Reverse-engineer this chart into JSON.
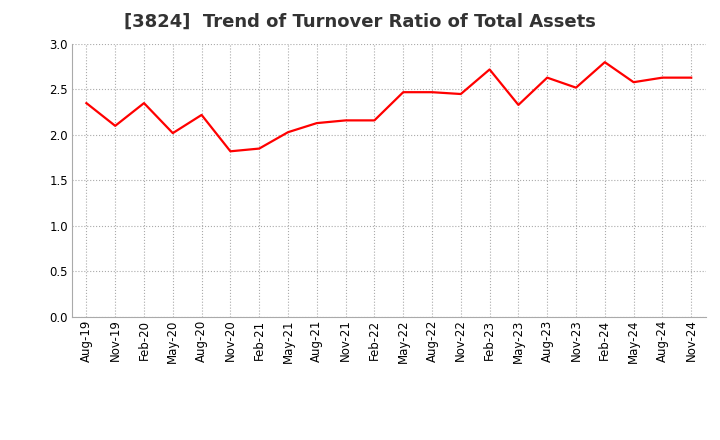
{
  "title": "[3824]  Trend of Turnover Ratio of Total Assets",
  "line_color": "#FF0000",
  "background_color": "#FFFFFF",
  "grid_color": "#AAAAAA",
  "ylim": [
    0.0,
    3.0
  ],
  "yticks": [
    0.0,
    0.5,
    1.0,
    1.5,
    2.0,
    2.5,
    3.0
  ],
  "x_labels": [
    "Aug-19",
    "Nov-19",
    "Feb-20",
    "May-20",
    "Aug-20",
    "Nov-20",
    "Feb-21",
    "May-21",
    "Aug-21",
    "Nov-21",
    "Feb-22",
    "May-22",
    "Aug-22",
    "Nov-22",
    "Feb-23",
    "May-23",
    "Aug-23",
    "Nov-23",
    "Feb-24",
    "May-24",
    "Aug-24",
    "Nov-24"
  ],
  "y_values": [
    2.35,
    2.1,
    2.35,
    2.02,
    2.22,
    1.82,
    1.85,
    2.03,
    2.13,
    2.16,
    2.16,
    2.47,
    2.47,
    2.45,
    2.72,
    2.33,
    2.63,
    2.52,
    2.8,
    2.58,
    2.63,
    2.63
  ],
  "title_fontsize": 13,
  "tick_fontsize": 8.5,
  "line_width": 1.6
}
